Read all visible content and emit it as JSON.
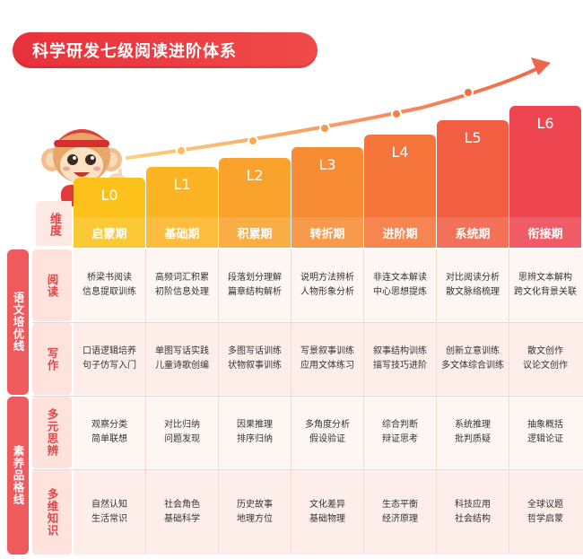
{
  "title": "科学研发七级阅读进阶体系",
  "header_label": "维度",
  "levels": [
    {
      "code": "L0",
      "stage": "启蒙期",
      "color": "#fcc21b"
    },
    {
      "code": "L1",
      "stage": "基础期",
      "color": "#fcb424"
    },
    {
      "code": "L2",
      "stage": "积累期",
      "color": "#f9a22c"
    },
    {
      "code": "L3",
      "stage": "转折期",
      "color": "#f78c34"
    },
    {
      "code": "L4",
      "stage": "进阶期",
      "color": "#f5753a"
    },
    {
      "code": "L5",
      "stage": "系统期",
      "color": "#f25e42"
    },
    {
      "code": "L6",
      "stage": "衔接期",
      "color": "#ee4650"
    }
  ],
  "groups": [
    {
      "label": "语文培优线",
      "color": "#ef5a5f"
    },
    {
      "label": "素养品格线",
      "color": "#ef5a5f"
    }
  ],
  "rows": [
    {
      "label": "阅读",
      "cells": [
        [
          "桥梁书阅读",
          "信息提取训练"
        ],
        [
          "高频词汇积累",
          "初阶信息处理"
        ],
        [
          "段落划分理解",
          "篇章结构解析"
        ],
        [
          "说明方法辨析",
          "人物形象分析"
        ],
        [
          "非连文本解读",
          "中心思想提炼"
        ],
        [
          "对比阅读分析",
          "散文脉络梳理"
        ],
        [
          "思辨文本解构",
          "跨文化背景关联"
        ]
      ]
    },
    {
      "label": "写作",
      "cells": [
        [
          "口语逻辑培养",
          "句子仿写入门"
        ],
        [
          "单图写话实践",
          "儿童诗歌创编"
        ],
        [
          "多图写话训练",
          "状物叙事训练"
        ],
        [
          "写景叙事训练",
          "应用文体练习"
        ],
        [
          "叙事结构训练",
          "描写技巧进阶"
        ],
        [
          "创新立意训练",
          "多文体综合训练"
        ],
        [
          "散文创作",
          "议论文创作"
        ]
      ]
    },
    {
      "label": "多元思辨",
      "cells": [
        [
          "观察分类",
          "简单联想"
        ],
        [
          "对比归纳",
          "问题发现"
        ],
        [
          "因果推理",
          "排序归纳"
        ],
        [
          "多角度分析",
          "假设验证"
        ],
        [
          "综合判断",
          "辩证思考"
        ],
        [
          "系统推理",
          "批判质疑"
        ],
        [
          "抽象概括",
          "逻辑论证"
        ]
      ]
    },
    {
      "label": "多维知识",
      "cells": [
        [
          "自然认知",
          "生活常识"
        ],
        [
          "社会角色",
          "基础科学"
        ],
        [
          "历史故事",
          "地理方位"
        ],
        [
          "文化差异",
          "基础物理"
        ],
        [
          "生态平衡",
          "经济原理"
        ],
        [
          "科技应用",
          "社会结构"
        ],
        [
          "全球议题",
          "哲学启蒙"
        ]
      ]
    }
  ],
  "colors": {
    "title_red": "#e8313a",
    "label_red": "#e0484a",
    "row_bg_pink": "#fdeeea",
    "row_bg_light": "#fef6f3",
    "arrow": "#f59a55"
  }
}
